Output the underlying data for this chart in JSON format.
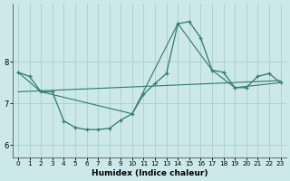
{
  "xlabel": "Humidex (Indice chaleur)",
  "bg_color": "#cce8e8",
  "line_color": "#2d7b6e",
  "grid_color": "#aacece",
  "xlim": [
    -0.5,
    23.5
  ],
  "ylim": [
    5.7,
    9.4
  ],
  "yticks": [
    6,
    7,
    8
  ],
  "xticks": [
    0,
    1,
    2,
    3,
    4,
    5,
    6,
    7,
    8,
    9,
    10,
    11,
    12,
    13,
    14,
    15,
    16,
    17,
    18,
    19,
    20,
    21,
    22,
    23
  ],
  "line1_x": [
    0,
    1,
    2,
    3,
    4,
    5,
    6,
    7,
    8,
    9,
    10,
    11,
    12,
    13,
    14,
    15,
    16,
    17,
    18,
    19,
    20,
    21,
    22,
    23
  ],
  "line1_y": [
    7.75,
    7.65,
    7.28,
    7.28,
    6.58,
    6.42,
    6.37,
    6.37,
    6.4,
    6.6,
    6.75,
    7.22,
    7.48,
    7.72,
    8.92,
    8.97,
    8.58,
    7.8,
    7.75,
    7.38,
    7.38,
    7.65,
    7.72,
    7.5
  ],
  "line2_x": [
    0,
    2,
    10,
    14,
    17,
    19,
    23
  ],
  "line2_y": [
    7.75,
    7.28,
    6.75,
    8.92,
    7.8,
    7.38,
    7.5
  ],
  "line3_x": [
    0,
    23
  ],
  "line3_y": [
    7.28,
    7.55
  ]
}
